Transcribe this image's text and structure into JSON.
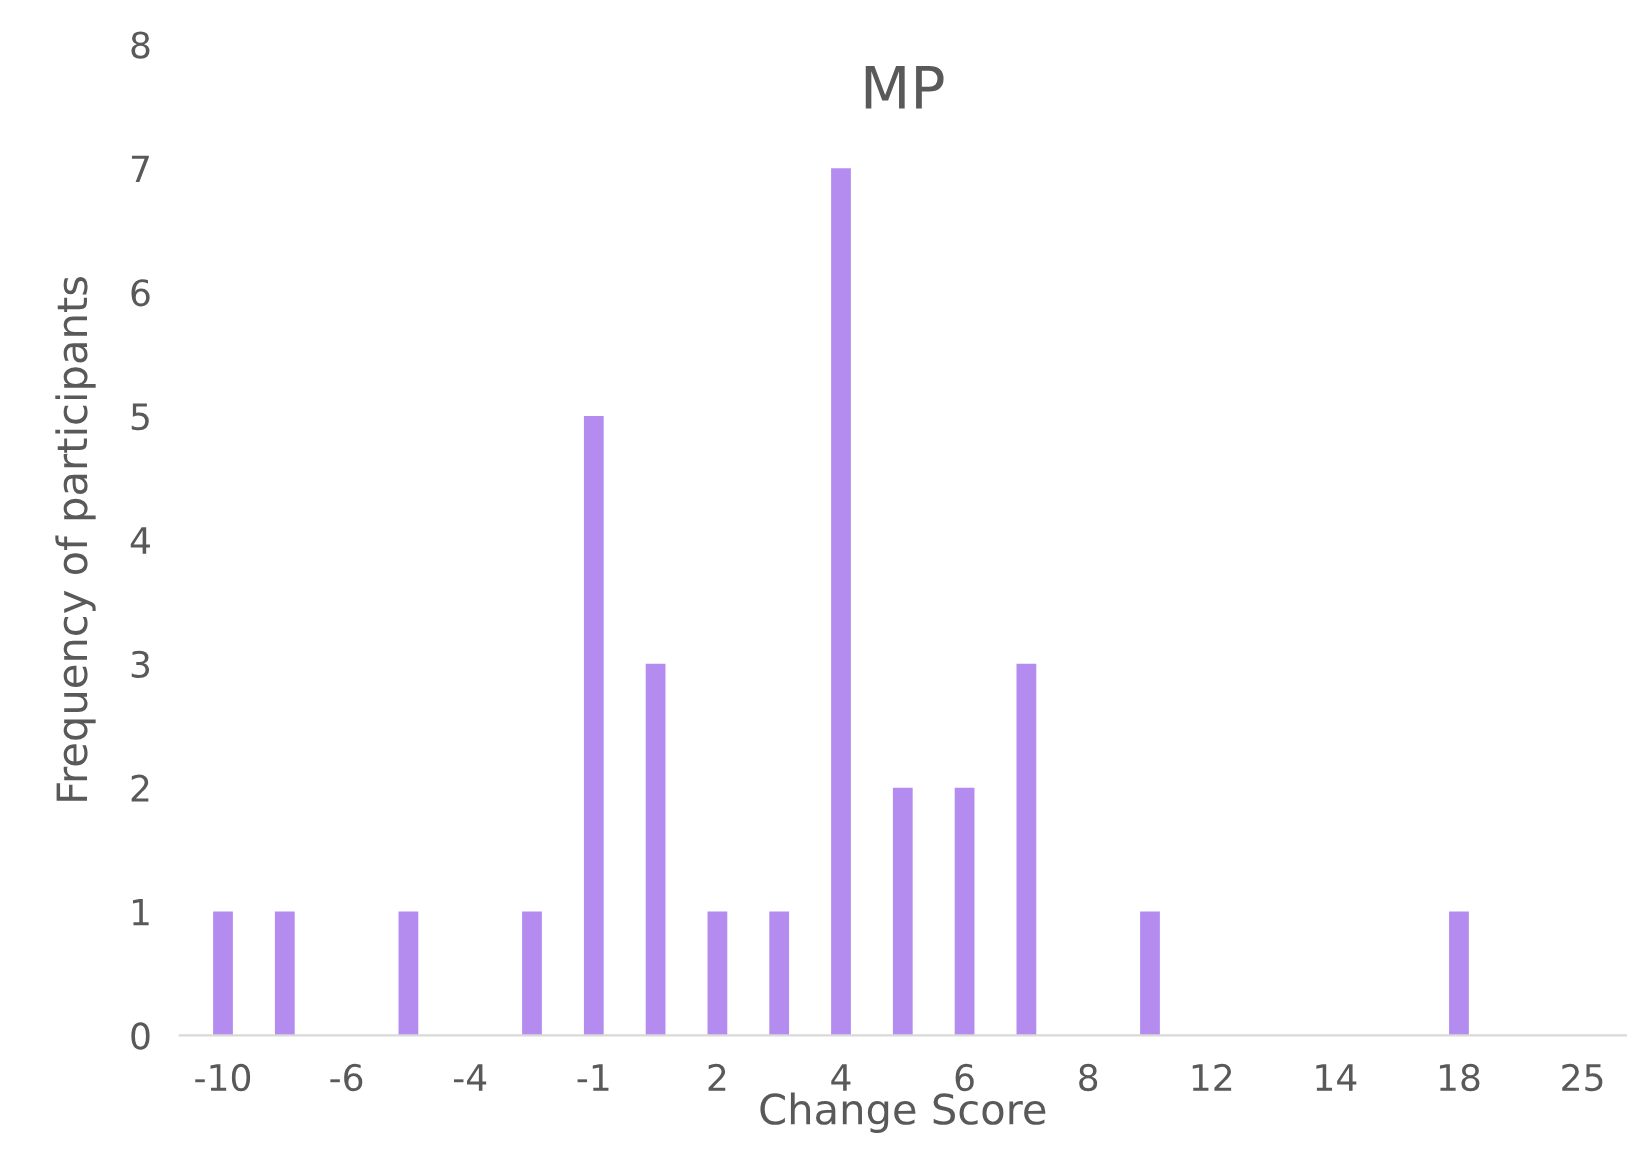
{
  "chart_data": {
    "type": "bar",
    "title": "MP",
    "xlabel": "Change Score",
    "ylabel": "Frequency of participants",
    "categories": [
      "-10",
      null,
      "-6",
      null,
      "-4",
      null,
      "-1",
      null,
      "2",
      null,
      "4",
      null,
      "6",
      null,
      "8",
      null,
      "12",
      null,
      "14",
      null,
      "18",
      null,
      "25"
    ],
    "values": [
      1,
      1,
      0,
      1,
      0,
      1,
      5,
      3,
      1,
      1,
      7,
      2,
      2,
      3,
      0,
      1,
      0,
      0,
      0,
      0,
      1,
      0,
      0
    ],
    "color": "#b48cf0",
    "ylim": [
      0,
      8
    ],
    "yticks": [
      0,
      1,
      2,
      3,
      4,
      5,
      6,
      7,
      8
    ],
    "grid": false,
    "legend": false
  }
}
